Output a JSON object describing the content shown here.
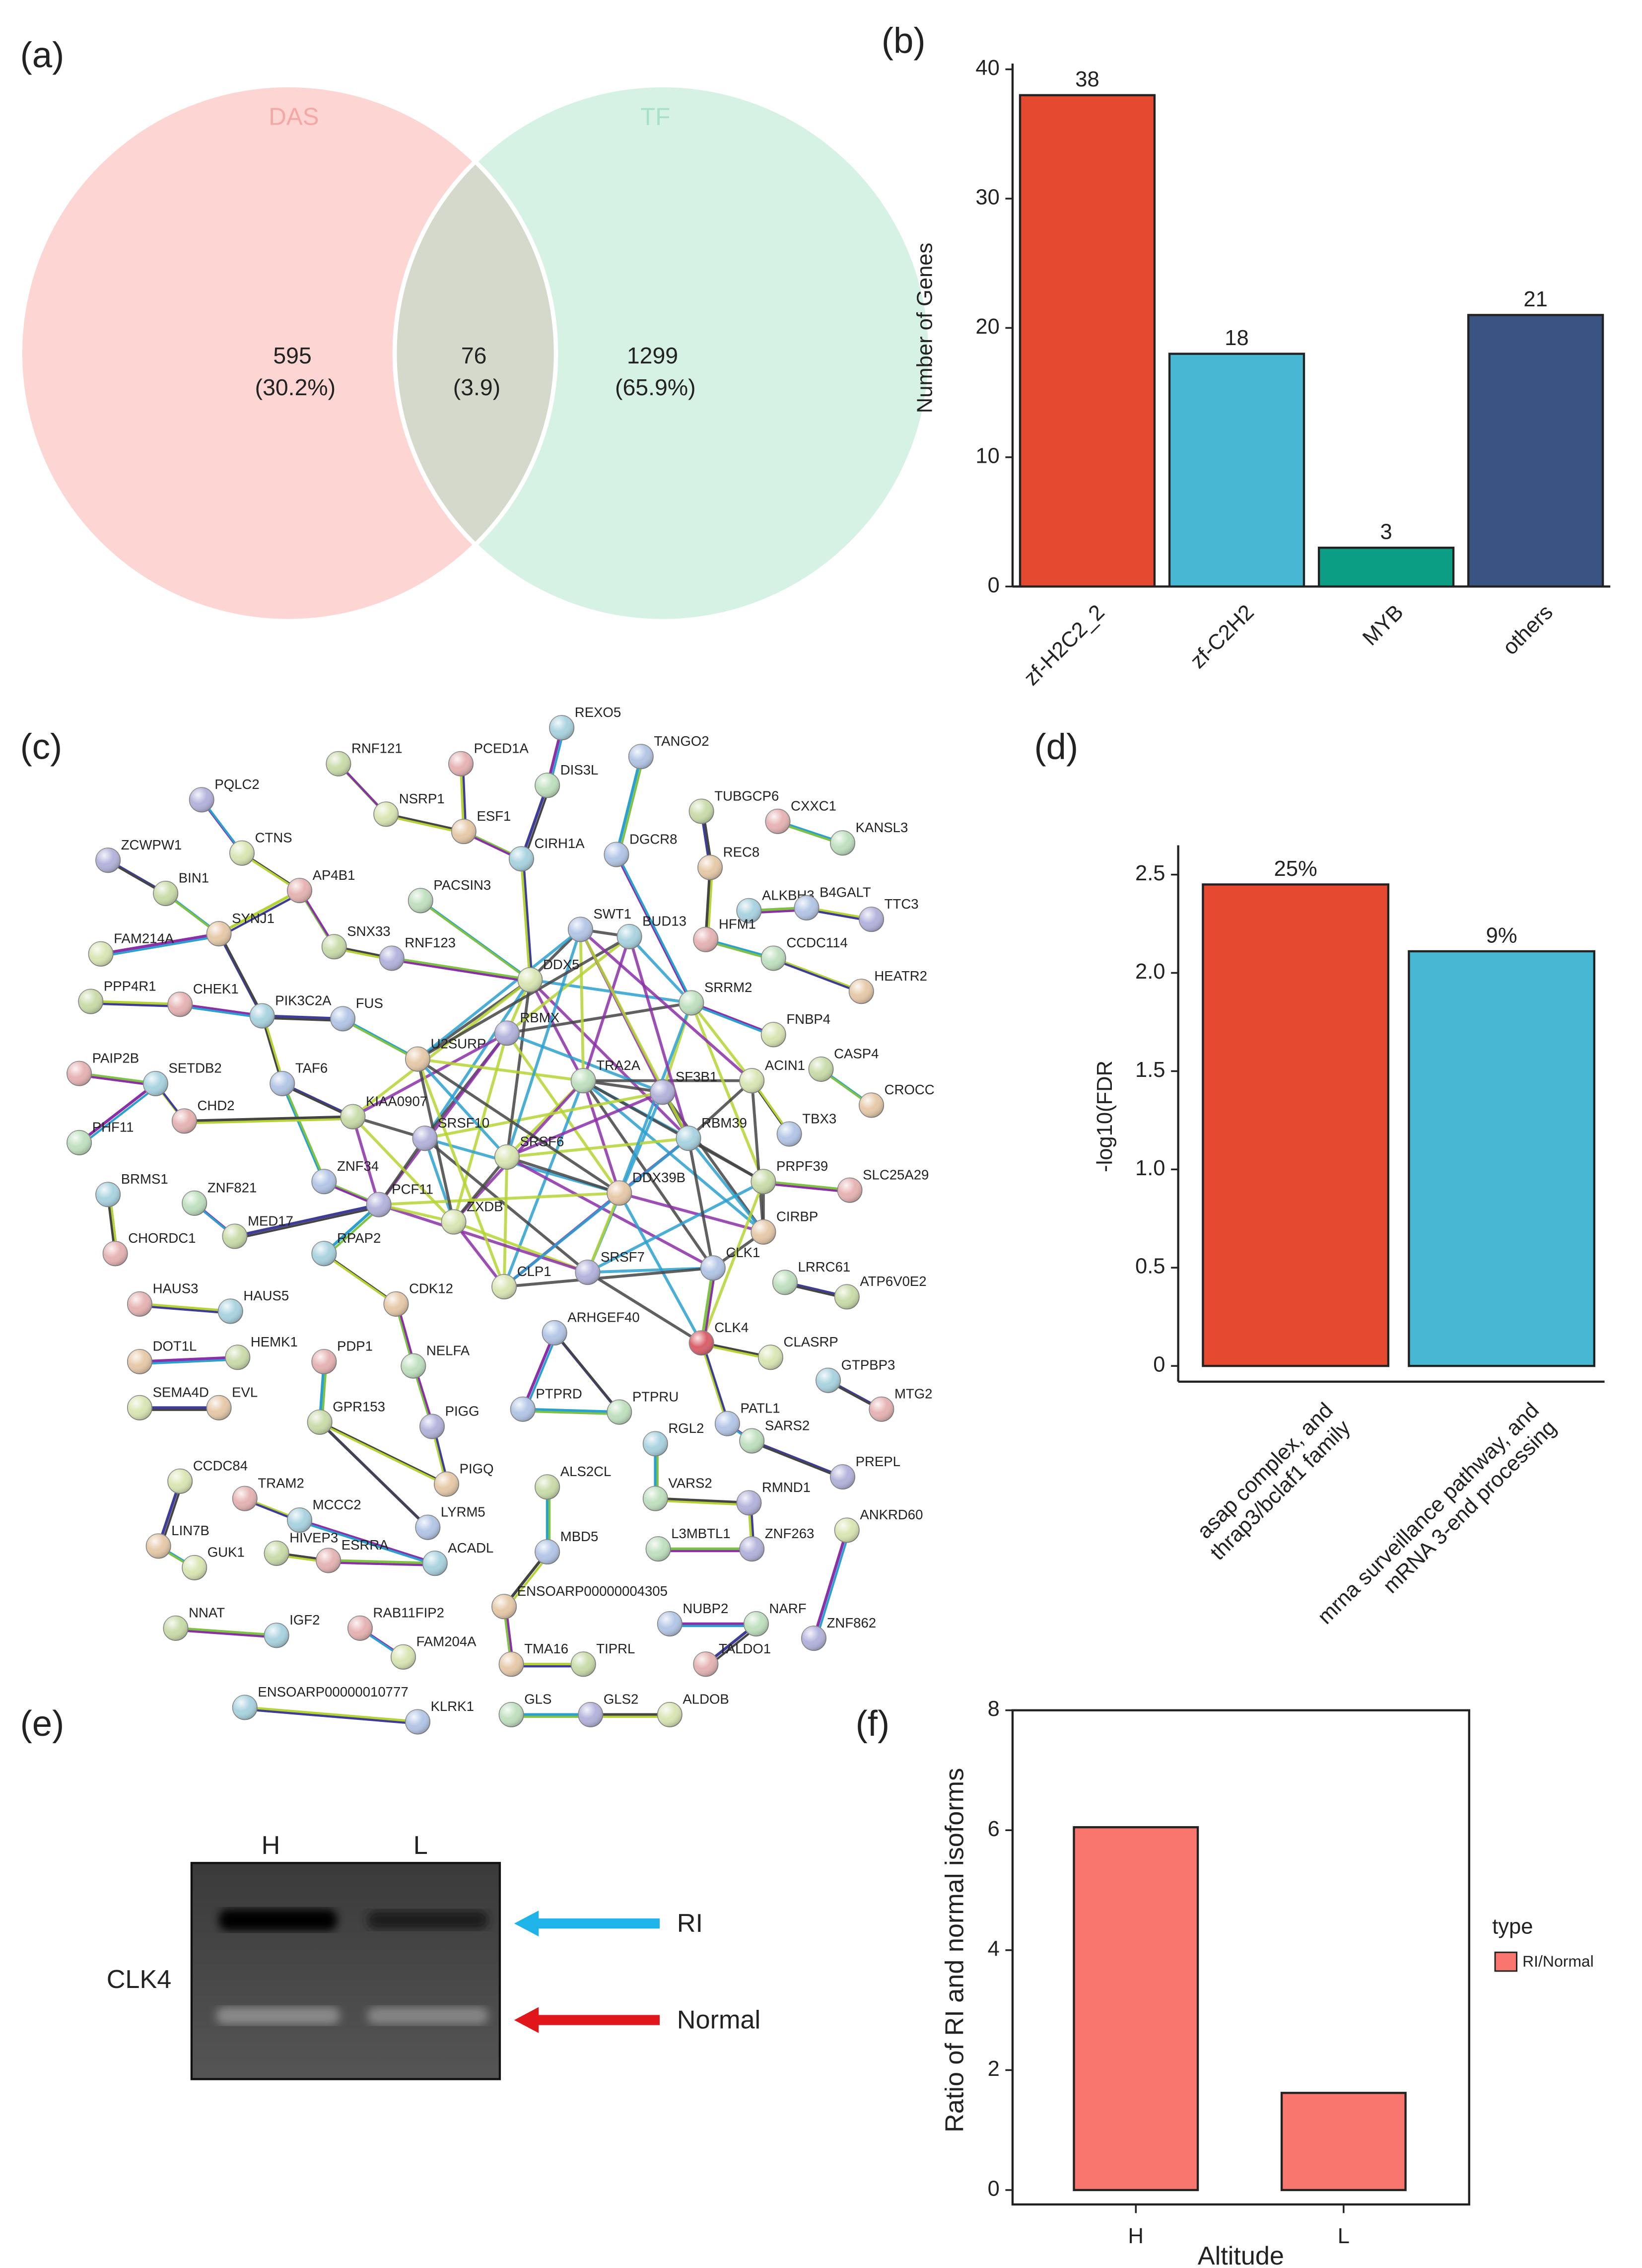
{
  "chart_data": [
    {
      "type": "venn",
      "panel": "(a)",
      "sets": [
        {
          "name": "DAS",
          "color": "#fdd5d3",
          "label_color": "#f4a8a6"
        },
        {
          "name": "TF",
          "color": "#d5f2e5",
          "label_color": "#a8e0c9"
        }
      ],
      "overlap_color": "#d5d9cc",
      "values": [
        595,
        76,
        1299
      ],
      "percents": [
        30.2,
        3.9,
        65.9
      ],
      "percent_labels": [
        "(30.2%)",
        "(3.9)",
        "(65.9%)"
      ]
    },
    {
      "type": "bar",
      "panel": "(b)",
      "categories": [
        "zf-H2C2_2",
        "zf-C2H2",
        "MYB",
        "others"
      ],
      "values": [
        38,
        18,
        3,
        21
      ],
      "colors": [
        "#e5492f",
        "#46b8d4",
        "#0b9e85",
        "#3b5383"
      ],
      "ylabel": "Number of Genes",
      "ylim": [
        0,
        40
      ],
      "yticks": [
        0,
        10,
        20,
        30,
        40
      ]
    },
    {
      "type": "network",
      "panel": "(c)",
      "nodes": [
        "RNF121",
        "PCED1A",
        "REXO5",
        "TANGO2",
        "DIS3L",
        "PQLC2",
        "NSRP1",
        "ESF1",
        "TUBGCP6",
        "CXXC1",
        "CIRH1A",
        "DGCR8",
        "KANSL3",
        "ZCWPW1",
        "CTNS",
        "REC8",
        "BIN1",
        "AP4B1",
        "ALKBH3",
        "B4GALT",
        "PACSIN3",
        "TTC3",
        "FAM214A",
        "SYNJ1",
        "SNX33",
        "HFM1",
        "BUD13",
        "SWT1",
        "CCDC114",
        "RNF123",
        "DDX5",
        "HEATR2",
        "PPP4R1",
        "CHEK1",
        "PIK3C2A",
        "FUS",
        "SRRM2",
        "RBMX",
        "FNBP4",
        "U2SURP",
        "CASP4",
        "PAIP2B",
        "SETDB2",
        "TAF6",
        "TRA2A",
        "SF3B1",
        "ACIN1",
        "CROCC",
        "KIAA0907",
        "CHD2",
        "RBM39",
        "TBX3",
        "PHF11",
        "SRSF10",
        "SRSF6",
        "DDX39B",
        "PRPF39",
        "SLC25A29",
        "BRMS1",
        "ZNF34",
        "ZNF821",
        "PCF11",
        "ZXDB",
        "CIRBP",
        "MED17",
        "CHORDC1",
        "RPAP2",
        "CLK1",
        "LRRC61",
        "SRSF7",
        "CLP1",
        "CDK12",
        "ATP6V0E2",
        "HAUS3",
        "HAUS5",
        "ARHGEF40",
        "NELFA",
        "CLK4",
        "CLASRP",
        "DOT1L",
        "HEMK1",
        "PDP1",
        "GTPBP3",
        "PTPRD",
        "PTPRU",
        "PIGG",
        "SEMA4D",
        "EVL",
        "GPR153",
        "MTG2",
        "RGL2",
        "PATL1",
        "SARS2",
        "PREPL",
        "CCDC84",
        "PIGQ",
        "ALS2CL",
        "TRAM2",
        "MCCC2",
        "LYRM5",
        "VARS2",
        "RMND1",
        "ANKRD60",
        "LIN7B",
        "HIVEP3",
        "ESRRA",
        "ACADL",
        "MBD5",
        "L3MBTL1",
        "ZNF263",
        "GUK1",
        "ENSOARP00000004305",
        "NNAT",
        "RAB11FIP2",
        "IGF2",
        "NUBP2",
        "NARF",
        "ZNF862",
        "FAM204A",
        "TMA16",
        "TIPRL",
        "TALDO1",
        "ENSOARP00000010777",
        "KLRK1",
        "GLS",
        "GLS2",
        "ALDOB"
      ]
    },
    {
      "type": "bar",
      "panel": "(d)",
      "categories": [
        [
          "asap complex, and",
          "thrap3/bclaf1 family"
        ],
        [
          "mrna surveillance pathway, and",
          "mRNA 3-end processing"
        ]
      ],
      "values": [
        2.45,
        2.11
      ],
      "percents": [
        25,
        9
      ],
      "percent_labels": [
        "25%",
        "9%"
      ],
      "colors": [
        "#e5492f",
        "#46b8d4"
      ],
      "ylabel": "-log10(FDR",
      "ylim": [
        -0.08,
        2.62
      ],
      "yticks": [
        0,
        0.5,
        {
          "value": 1,
          "label": "1.0"
        },
        1.5,
        {
          "value": 2,
          "label": "2.0"
        },
        2.5
      ]
    },
    {
      "type": "gel",
      "panel": "(e)",
      "lanes": [
        "H",
        "L"
      ],
      "sample": "CLK4",
      "bands": [
        {
          "name": "RI",
          "color": "#1fb4e9"
        },
        {
          "name": "Normal",
          "color": "#e0161b"
        }
      ]
    },
    {
      "type": "bar",
      "panel": "(f)",
      "categories": [
        "H",
        "L"
      ],
      "series": [
        {
          "name": "RI/Normal",
          "color": "#f8766d",
          "values": [
            6.05,
            1.62
          ]
        }
      ],
      "xlabel": "Altitude",
      "ylabel": "Ratio of RI and normal isoforms",
      "legend_title": "type",
      "ylim": [
        0,
        8
      ],
      "yticks": [
        0,
        2,
        4,
        6,
        8
      ]
    }
  ]
}
